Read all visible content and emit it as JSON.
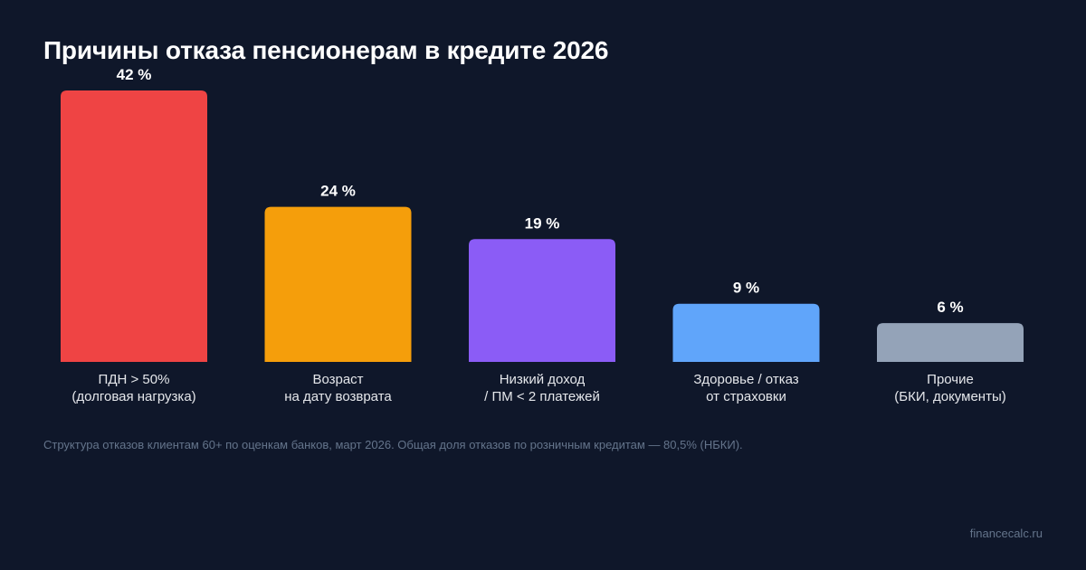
{
  "title": "Причины отказа пенсионерам в кредите 2026",
  "footnote": "Структура отказов клиентам 60+ по оценкам банков, март 2026. Общая доля отказов по розничным кредитам — 80,5% (НБКИ).",
  "brand": "financecalc.ru",
  "chart_data": {
    "type": "bar",
    "title": "Причины отказа пенсионерам в кредите 2026",
    "xlabel": "",
    "ylabel": "",
    "ylim": [
      0,
      42
    ],
    "grid": false,
    "categories": [
      [
        "ПДН > 50%",
        "(долговая нагрузка)"
      ],
      [
        "Возраст",
        "на дату возврата"
      ],
      [
        "Низкий доход",
        "/ ПМ < 2 платежей"
      ],
      [
        "Здоровье / отказ",
        "от страховки"
      ],
      [
        "Прочие",
        "(БКИ, документы)"
      ]
    ],
    "values": [
      42,
      24,
      19,
      9,
      6
    ],
    "value_labels": [
      "42 %",
      "24 %",
      "19 %",
      "9 %",
      "6 %"
    ],
    "colors": [
      "#ef4444",
      "#f59e0b",
      "#8b5cf6",
      "#60a5fa",
      "#94a3b8"
    ]
  }
}
